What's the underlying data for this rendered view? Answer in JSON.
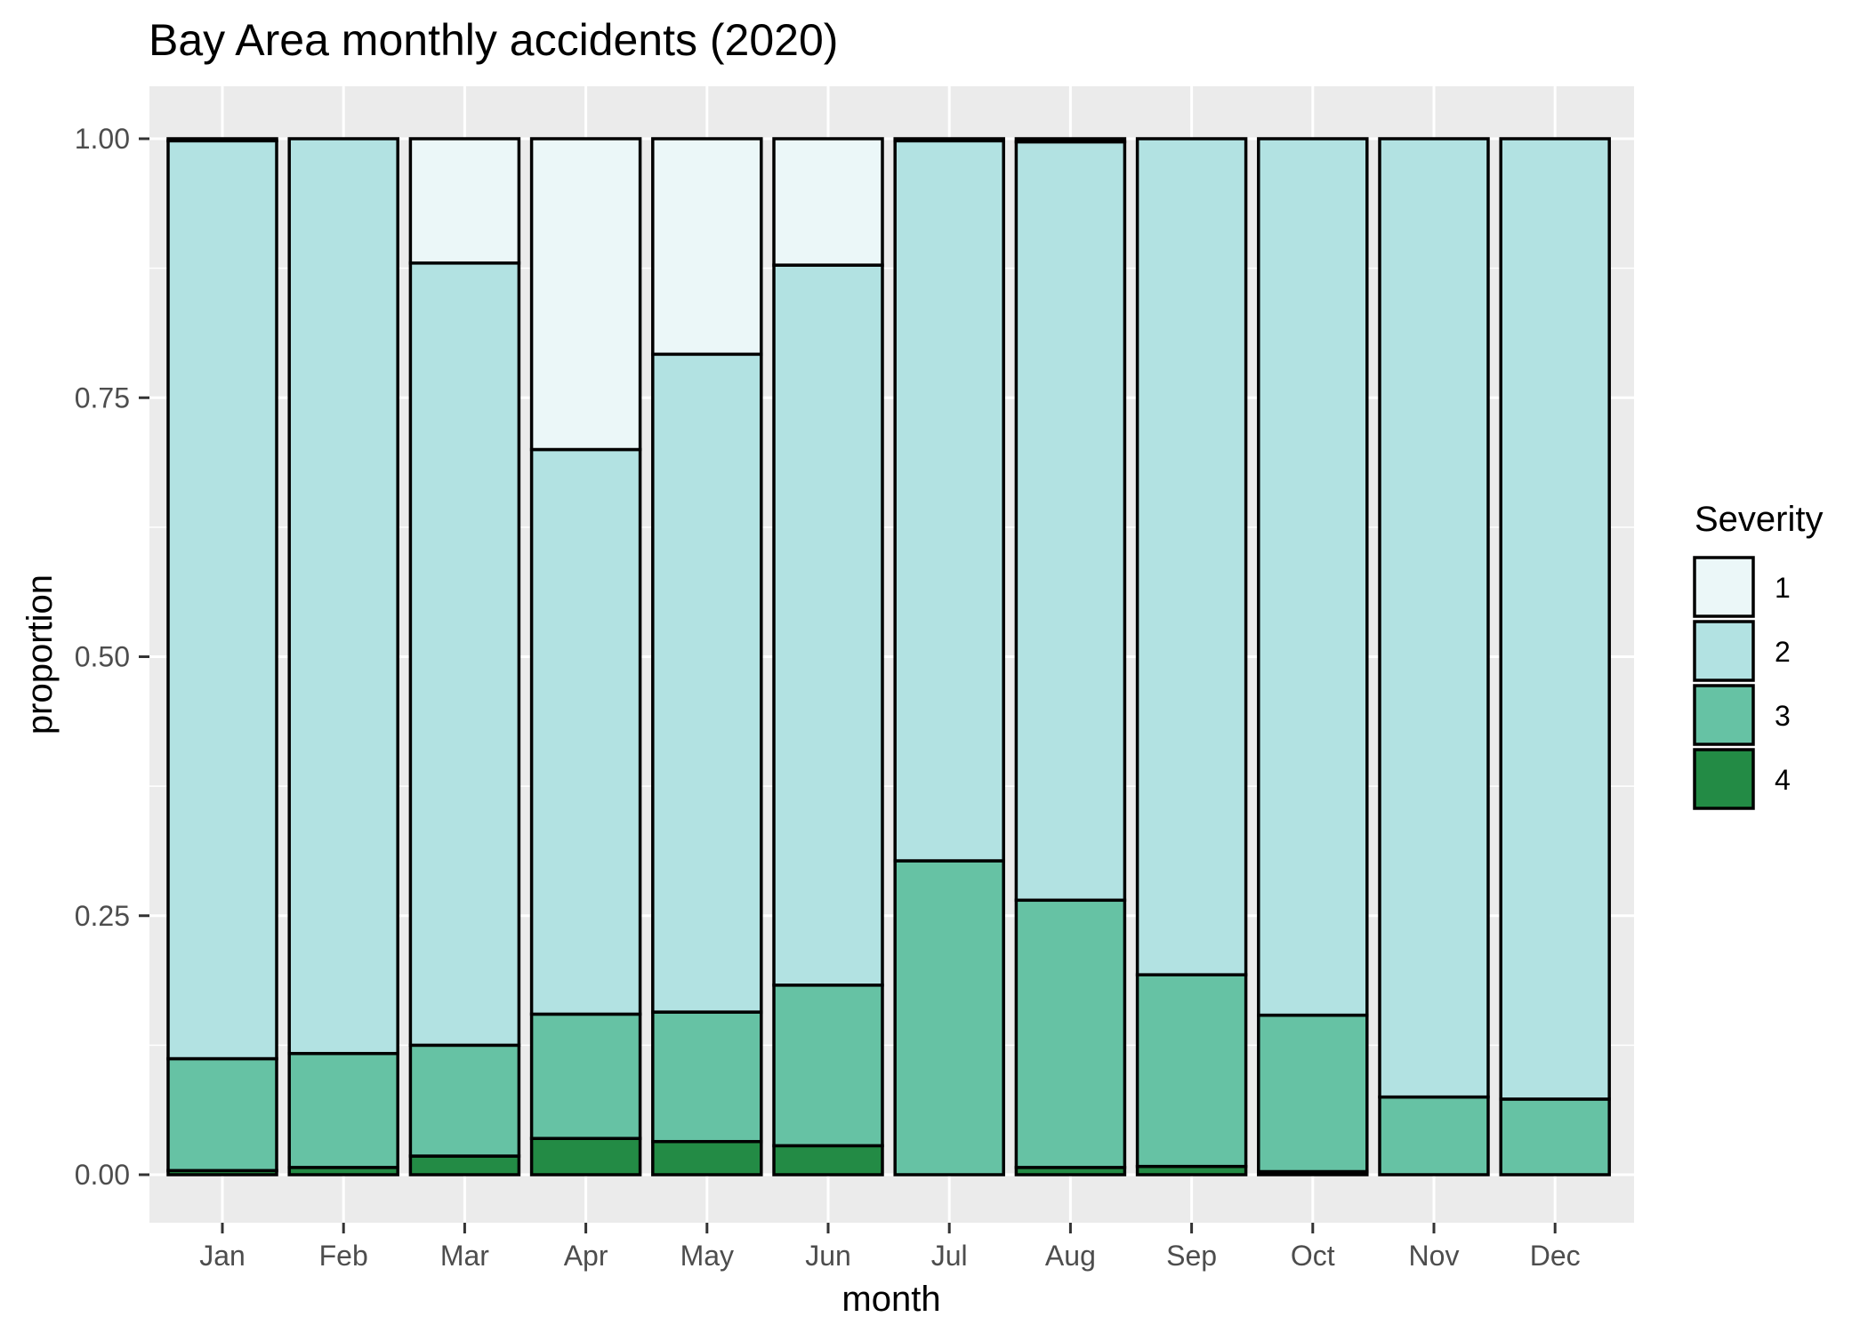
{
  "chart_data": {
    "type": "bar",
    "stacked": "fill",
    "title": "Bay Area monthly accidents (2020)",
    "xlabel": "month",
    "ylabel": "proportion",
    "ylim": [
      0,
      1
    ],
    "y_ticks": [
      "0.00",
      "0.25",
      "0.50",
      "0.75",
      "1.00"
    ],
    "categories": [
      "Jan",
      "Feb",
      "Mar",
      "Apr",
      "May",
      "Jun",
      "Jul",
      "Aug",
      "Sep",
      "Oct",
      "Nov",
      "Dec"
    ],
    "legend_title": "Severity",
    "legend_position": "right",
    "grid": true,
    "panel_background": "#ebebeb",
    "series": [
      {
        "name": "1",
        "color": "#ebf7f8",
        "values": [
          0.002,
          0.0,
          0.12,
          0.3,
          0.208,
          0.122,
          0.002,
          0.003,
          0.0,
          0.0,
          0.0,
          0.0
        ]
      },
      {
        "name": "2",
        "color": "#b2e2e2",
        "values": [
          0.886,
          0.883,
          0.755,
          0.545,
          0.635,
          0.695,
          0.695,
          0.732,
          0.807,
          0.846,
          0.925,
          0.927
        ]
      },
      {
        "name": "3",
        "color": "#66c2a4",
        "values": [
          0.108,
          0.11,
          0.107,
          0.12,
          0.125,
          0.155,
          0.303,
          0.258,
          0.185,
          0.151,
          0.075,
          0.073
        ]
      },
      {
        "name": "4",
        "color": "#238b45",
        "values": [
          0.004,
          0.007,
          0.018,
          0.035,
          0.032,
          0.028,
          0.0,
          0.007,
          0.008,
          0.003,
          0.0,
          0.0
        ]
      }
    ]
  }
}
